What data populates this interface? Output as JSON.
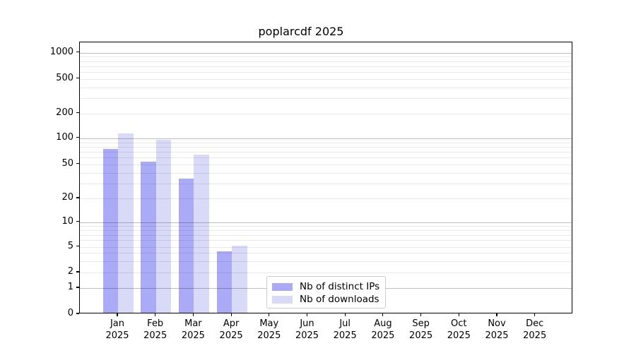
{
  "chart_data": {
    "type": "bar",
    "title": "poplarcdf 2025",
    "year_label": "2025",
    "categories": [
      "Jan",
      "Feb",
      "Mar",
      "Apr",
      "May",
      "Jun",
      "Jul",
      "Aug",
      "Sep",
      "Oct",
      "Nov",
      "Dec"
    ],
    "series": [
      {
        "name": "Nb of distinct IPs",
        "color": "#aaaaf7",
        "values": [
          73,
          52,
          33,
          4,
          0,
          0,
          0,
          0,
          0,
          0,
          0,
          0
        ]
      },
      {
        "name": "Nb of downloads",
        "color": "#d9d9f8",
        "values": [
          110,
          93,
          63,
          5,
          0,
          0,
          0,
          0,
          0,
          0,
          0,
          0
        ]
      }
    ],
    "xlabel": "",
    "ylabel": "",
    "grid": "on",
    "y_axis": {
      "scale": "symlog",
      "ylim": [
        0,
        1400
      ],
      "ticks": [
        {
          "value": 0,
          "frac": 0.0
        },
        {
          "value": 1,
          "frac": 0.096
        },
        {
          "value": 2,
          "frac": 0.153
        },
        {
          "value": 5,
          "frac": 0.248
        },
        {
          "value": 10,
          "frac": 0.338
        },
        {
          "value": 20,
          "frac": 0.426
        },
        {
          "value": 50,
          "frac": 0.551
        },
        {
          "value": 100,
          "frac": 0.647
        },
        {
          "value": 200,
          "frac": 0.738
        },
        {
          "value": 500,
          "frac": 0.866
        },
        {
          "value": 1000,
          "frac": 0.962
        }
      ],
      "major_gridline_values": [
        1,
        10,
        100,
        1000
      ]
    },
    "legend": {
      "position": "lower center"
    }
  }
}
